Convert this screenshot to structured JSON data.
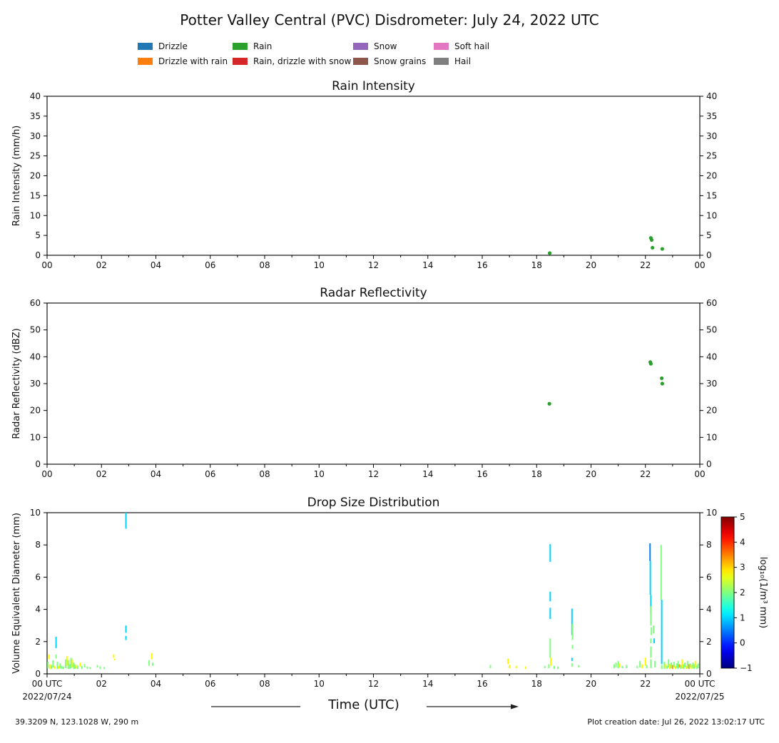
{
  "title": "Potter Valley Central (PVC) Disdrometer: July 24, 2022 UTC",
  "legend": {
    "columns": [
      [
        {
          "label": "Drizzle",
          "color": "#1f77b4"
        },
        {
          "label": "Drizzle with rain",
          "color": "#ff7f0e"
        }
      ],
      [
        {
          "label": "Rain",
          "color": "#2ca02c"
        },
        {
          "label": "Rain, drizzle with snow",
          "color": "#d62728"
        }
      ],
      [
        {
          "label": "Snow",
          "color": "#9467bd"
        },
        {
          "label": "Snow grains",
          "color": "#8c564b"
        }
      ],
      [
        {
          "label": "Soft hail",
          "color": "#e377c2"
        },
        {
          "label": "Hail",
          "color": "#7f7f7f"
        }
      ]
    ]
  },
  "time_axis": {
    "label": "Time (UTC)",
    "left_end_label": "00 UTC",
    "right_end_label": "00 UTC",
    "date_left": "2022/07/24",
    "date_right": "2022/07/25"
  },
  "footer": {
    "location": "39.3209 N, 123.1028 W, 290 m",
    "creation_date": "Plot creation date: Jul 26, 2022 13:02:17 UTC"
  },
  "colorbar": {
    "colormap": "jet",
    "vmin": -1,
    "vmax": 5,
    "ticks": [
      5,
      4,
      3,
      2,
      1,
      0,
      -1
    ],
    "tick_labels": [
      "5",
      "4",
      "3",
      "2",
      "1",
      "0",
      "−1"
    ],
    "label": "log₁₀(1/m³ mm)"
  },
  "chart_data": [
    {
      "type": "scatter",
      "title": "Rain Intensity",
      "ylabel": "Rain Intensity (mm/h)",
      "ylim": [
        0,
        40
      ],
      "yticks": [
        0,
        5,
        10,
        15,
        20,
        25,
        30,
        35,
        40
      ],
      "xlim_hours": [
        0,
        24
      ],
      "xtick_hours": [
        0,
        2,
        4,
        6,
        8,
        10,
        12,
        14,
        16,
        18,
        20,
        22,
        24
      ],
      "xtick_labels": [
        "00",
        "02",
        "04",
        "06",
        "08",
        "10",
        "12",
        "14",
        "16",
        "18",
        "20",
        "22",
        "00"
      ],
      "series": [
        {
          "name": "Rain",
          "color": "#2ca02c",
          "points": [
            [
              18.48,
              0.55
            ],
            [
              22.2,
              4.35
            ],
            [
              22.23,
              3.85
            ],
            [
              22.26,
              1.9
            ],
            [
              22.62,
              1.6
            ]
          ]
        }
      ]
    },
    {
      "type": "scatter",
      "title": "Radar Reflectivity",
      "ylabel": "Radar Reflectivity (dBZ)",
      "ylim": [
        0,
        60
      ],
      "yticks": [
        0,
        10,
        20,
        30,
        40,
        50,
        60
      ],
      "xlim_hours": [
        0,
        24
      ],
      "xtick_hours": [
        0,
        2,
        4,
        6,
        8,
        10,
        12,
        14,
        16,
        18,
        20,
        22,
        24
      ],
      "xtick_labels": [
        "00",
        "02",
        "04",
        "06",
        "08",
        "10",
        "12",
        "14",
        "16",
        "18",
        "20",
        "22",
        "00"
      ],
      "series": [
        {
          "name": "Rain",
          "color": "#2ca02c",
          "points": [
            [
              18.47,
              22.5
            ],
            [
              22.18,
              38.0
            ],
            [
              22.2,
              37.4
            ],
            [
              22.6,
              32.0
            ],
            [
              22.62,
              30.0
            ]
          ]
        }
      ]
    },
    {
      "type": "heatmap",
      "title": "Drop Size Distribution",
      "ylabel": "Volume Equivalent Diameter (mm)",
      "value_label": "log₁₀(1/m³ mm)",
      "ylim": [
        0,
        10
      ],
      "yticks": [
        0,
        2,
        4,
        6,
        8,
        10
      ],
      "xlim_hours": [
        0,
        24
      ],
      "xtick_hours": [
        0,
        2,
        4,
        6,
        8,
        10,
        12,
        14,
        16,
        18,
        20,
        22,
        24
      ],
      "xtick_labels": [
        "00 UTC",
        "02",
        "04",
        "06",
        "08",
        "10",
        "12",
        "14",
        "16",
        "18",
        "20",
        "22",
        "00 UTC"
      ],
      "date_left": "2022/07/24",
      "date_right": "2022/07/25",
      "segments": [
        [
          0.03,
          0.35,
          0.75,
          2
        ],
        [
          0.07,
          0.9,
          1.2,
          2.8
        ],
        [
          0.1,
          0.3,
          0.6,
          2.8
        ],
        [
          0.16,
          0.3,
          0.55,
          2
        ],
        [
          0.22,
          0.4,
          0.85,
          2
        ],
        [
          0.28,
          0.3,
          0.5,
          2.8
        ],
        [
          0.33,
          1.6,
          2.3,
          1
        ],
        [
          0.33,
          0.95,
          1.2,
          2
        ],
        [
          0.38,
          0.3,
          0.75,
          2
        ],
        [
          0.43,
          0.3,
          0.5,
          2.8
        ],
        [
          0.48,
          0.35,
          0.65,
          2
        ],
        [
          0.53,
          0.3,
          0.5,
          2
        ],
        [
          0.6,
          0.3,
          0.45,
          2
        ],
        [
          0.68,
          0.35,
          0.9,
          2
        ],
        [
          0.73,
          0.5,
          1.1,
          2.8
        ],
        [
          0.78,
          0.3,
          0.85,
          2
        ],
        [
          0.83,
          0.3,
          0.6,
          2
        ],
        [
          0.88,
          0.35,
          1.0,
          2
        ],
        [
          0.93,
          0.4,
          0.9,
          2.8
        ],
        [
          0.98,
          0.3,
          0.7,
          2
        ],
        [
          1.03,
          0.3,
          0.6,
          2
        ],
        [
          1.08,
          0.35,
          0.55,
          2.8
        ],
        [
          1.13,
          0.3,
          0.5,
          2
        ],
        [
          1.22,
          0.45,
          0.7,
          2.8
        ],
        [
          1.28,
          0.3,
          0.5,
          2
        ],
        [
          1.38,
          0.4,
          0.6,
          2
        ],
        [
          1.48,
          0.3,
          0.45,
          2
        ],
        [
          1.58,
          0.3,
          0.42,
          2
        ],
        [
          1.85,
          0.4,
          0.55,
          2
        ],
        [
          1.95,
          0.3,
          0.45,
          2
        ],
        [
          2.1,
          0.3,
          0.42,
          2
        ],
        [
          2.45,
          1.0,
          1.2,
          2.8
        ],
        [
          2.48,
          0.85,
          0.95,
          2.8
        ],
        [
          2.9,
          9.0,
          10.0,
          1
        ],
        [
          2.9,
          2.55,
          3.0,
          1
        ],
        [
          2.9,
          2.1,
          2.35,
          1
        ],
        [
          3.75,
          0.5,
          0.85,
          2
        ],
        [
          3.85,
          0.9,
          1.3,
          2.8
        ],
        [
          3.88,
          0.5,
          0.7,
          2
        ],
        [
          16.3,
          0.35,
          0.55,
          2
        ],
        [
          16.95,
          0.6,
          0.95,
          2.8
        ],
        [
          17.0,
          0.35,
          0.55,
          2.8
        ],
        [
          17.25,
          0.35,
          0.5,
          2.8
        ],
        [
          17.6,
          0.3,
          0.45,
          2.8
        ],
        [
          18.3,
          0.35,
          0.5,
          2
        ],
        [
          18.5,
          6.95,
          8.05,
          1
        ],
        [
          18.5,
          4.5,
          5.1,
          1
        ],
        [
          18.5,
          3.4,
          4.1,
          1
        ],
        [
          18.5,
          1.0,
          2.2,
          2
        ],
        [
          18.52,
          0.5,
          1.0,
          2.8
        ],
        [
          18.45,
          0.35,
          0.6,
          2
        ],
        [
          18.65,
          0.3,
          0.5,
          2
        ],
        [
          18.78,
          0.3,
          0.45,
          2
        ],
        [
          19.3,
          2.4,
          4.05,
          1
        ],
        [
          19.32,
          2.1,
          3.1,
          2
        ],
        [
          19.32,
          1.55,
          1.8,
          2
        ],
        [
          19.3,
          0.8,
          1.0,
          1
        ],
        [
          19.3,
          0.44,
          0.66,
          2
        ],
        [
          19.55,
          0.4,
          0.55,
          2
        ],
        [
          20.85,
          0.35,
          0.6,
          2
        ],
        [
          20.92,
          0.4,
          0.7,
          2
        ],
        [
          21.0,
          0.35,
          0.8,
          2
        ],
        [
          21.05,
          0.4,
          0.65,
          2.8
        ],
        [
          21.15,
          0.35,
          0.5,
          2
        ],
        [
          21.3,
          0.35,
          0.55,
          2
        ],
        [
          21.7,
          0.35,
          0.5,
          2
        ],
        [
          21.8,
          0.4,
          0.8,
          2
        ],
        [
          21.88,
          0.35,
          0.6,
          2.8
        ],
        [
          22.0,
          0.5,
          1.0,
          2.8
        ],
        [
          22.05,
          0.35,
          0.55,
          2
        ],
        [
          22.17,
          7.0,
          8.1,
          0.5
        ],
        [
          22.18,
          4.9,
          7.0,
          1
        ],
        [
          22.2,
          3.7,
          4.9,
          1
        ],
        [
          22.2,
          3.0,
          4.2,
          2
        ],
        [
          22.22,
          2.4,
          2.9,
          2
        ],
        [
          22.2,
          1.9,
          2.2,
          2
        ],
        [
          22.2,
          1.0,
          1.7,
          2
        ],
        [
          22.2,
          0.35,
          0.9,
          2
        ],
        [
          22.3,
          2.5,
          3.0,
          2
        ],
        [
          22.32,
          1.9,
          2.2,
          1
        ],
        [
          22.35,
          0.4,
          0.8,
          2
        ],
        [
          22.58,
          4.6,
          8.0,
          2
        ],
        [
          22.6,
          0.6,
          4.6,
          1
        ],
        [
          22.6,
          0.3,
          0.55,
          2
        ],
        [
          22.7,
          0.3,
          0.75,
          2
        ],
        [
          22.75,
          0.35,
          0.6,
          2.8
        ],
        [
          22.8,
          0.3,
          0.5,
          2
        ],
        [
          22.85,
          0.4,
          0.9,
          2
        ],
        [
          22.9,
          0.3,
          0.6,
          2.8
        ],
        [
          22.95,
          0.35,
          0.7,
          2
        ],
        [
          23.0,
          0.3,
          0.55,
          3.3
        ],
        [
          23.05,
          0.4,
          0.75,
          2
        ],
        [
          23.1,
          0.3,
          0.5,
          2.8
        ],
        [
          23.15,
          0.35,
          0.65,
          2
        ],
        [
          23.2,
          0.3,
          0.8,
          2
        ],
        [
          23.25,
          0.4,
          0.6,
          3.3
        ],
        [
          23.3,
          0.3,
          0.55,
          2
        ],
        [
          23.35,
          0.35,
          0.9,
          2.8
        ],
        [
          23.4,
          0.3,
          0.6,
          2
        ],
        [
          23.45,
          0.4,
          0.7,
          2
        ],
        [
          23.5,
          0.3,
          0.5,
          2.8
        ],
        [
          23.55,
          0.35,
          0.8,
          2
        ],
        [
          23.6,
          0.3,
          0.6,
          3.3
        ],
        [
          23.65,
          0.4,
          0.65,
          2
        ],
        [
          23.7,
          0.3,
          0.55,
          2.8
        ],
        [
          23.75,
          0.35,
          0.7,
          2
        ],
        [
          23.8,
          0.3,
          0.6,
          2
        ],
        [
          23.85,
          0.4,
          0.8,
          2.8
        ],
        [
          23.9,
          0.3,
          0.55,
          2
        ],
        [
          23.95,
          0.35,
          0.65,
          2
        ]
      ]
    }
  ]
}
